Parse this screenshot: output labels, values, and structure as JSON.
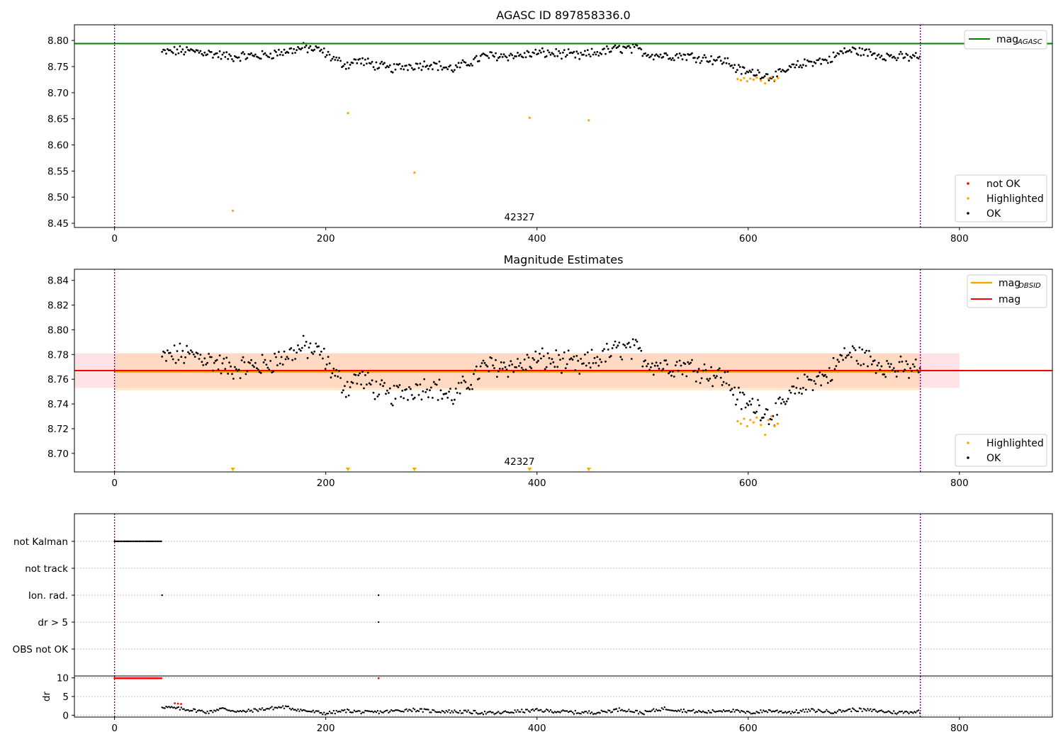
{
  "chart_data": [
    {
      "type": "scatter",
      "title": "AGASC ID 897858336.0",
      "xlim": [
        -38,
        888
      ],
      "ylim": [
        8.442,
        8.83
      ],
      "xticks": [
        0,
        200,
        400,
        600,
        800
      ],
      "yticks": [
        8.45,
        8.5,
        8.55,
        8.6,
        8.65,
        8.7,
        8.75,
        8.8
      ],
      "hlines": [
        {
          "name": "mag",
          "subscript": "AGASC",
          "y": 8.794,
          "color": "#008000"
        }
      ],
      "vlines": [
        {
          "x": 0,
          "color": "#800080",
          "style": "dotted"
        },
        {
          "x": 763,
          "color": "#800080",
          "style": "dotted"
        }
      ],
      "obs_label": {
        "text": "42327",
        "x": 381
      },
      "series_styles": {
        "not_ok": {
          "name": "not OK",
          "color": "#ff0000"
        },
        "highlighted": {
          "name": "Highlighted",
          "color": "#ffa500"
        },
        "ok": {
          "name": "OK",
          "color": "#000000"
        }
      },
      "ok_trend": [
        [
          45,
          8.777
        ],
        [
          60,
          8.78
        ],
        [
          80,
          8.779
        ],
        [
          100,
          8.772
        ],
        [
          110,
          8.768
        ],
        [
          120,
          8.77
        ],
        [
          140,
          8.771
        ],
        [
          160,
          8.778
        ],
        [
          180,
          8.786
        ],
        [
          195,
          8.781
        ],
        [
          210,
          8.762
        ],
        [
          220,
          8.753
        ],
        [
          230,
          8.762
        ],
        [
          245,
          8.754
        ],
        [
          260,
          8.746
        ],
        [
          280,
          8.752
        ],
        [
          300,
          8.755
        ],
        [
          320,
          8.745
        ],
        [
          335,
          8.757
        ],
        [
          350,
          8.77
        ],
        [
          370,
          8.771
        ],
        [
          385,
          8.771
        ],
        [
          400,
          8.776
        ],
        [
          420,
          8.775
        ],
        [
          440,
          8.77
        ],
        [
          460,
          8.778
        ],
        [
          480,
          8.785
        ],
        [
          495,
          8.783
        ],
        [
          505,
          8.774
        ],
        [
          520,
          8.771
        ],
        [
          540,
          8.771
        ],
        [
          560,
          8.766
        ],
        [
          580,
          8.76
        ],
        [
          590,
          8.745
        ],
        [
          600,
          8.739
        ],
        [
          610,
          8.738
        ],
        [
          620,
          8.731
        ],
        [
          630,
          8.735
        ],
        [
          640,
          8.747
        ],
        [
          660,
          8.76
        ],
        [
          675,
          8.762
        ],
        [
          690,
          8.779
        ],
        [
          700,
          8.781
        ],
        [
          720,
          8.774
        ],
        [
          740,
          8.768
        ],
        [
          763,
          8.769
        ]
      ],
      "highlighted_points": [
        [
          590,
          8.726
        ],
        [
          593,
          8.724
        ],
        [
          596,
          8.728
        ],
        [
          599,
          8.722
        ],
        [
          602,
          8.727
        ],
        [
          605,
          8.725
        ],
        [
          608,
          8.729
        ],
        [
          612,
          8.723
        ],
        [
          616,
          8.718
        ],
        [
          619,
          8.727
        ],
        [
          622,
          8.73
        ],
        [
          625,
          8.724
        ],
        [
          628,
          8.728
        ],
        [
          112,
          8.474
        ],
        [
          221,
          8.661
        ],
        [
          284,
          8.547
        ],
        [
          393,
          8.652
        ],
        [
          449,
          8.647
        ]
      ],
      "not_ok_points": []
    },
    {
      "type": "scatter",
      "title": "Magnitude Estimates",
      "xlim": [
        -38,
        888
      ],
      "ylim": [
        8.685,
        8.849
      ],
      "xticks": [
        0,
        200,
        400,
        600,
        800
      ],
      "yticks": [
        8.7,
        8.72,
        8.74,
        8.76,
        8.78,
        8.8,
        8.82,
        8.84
      ],
      "hlines": [
        {
          "name": "mag",
          "subscript": "OBSID",
          "y": 8.766,
          "color": "#ffa500",
          "x0": 0,
          "x1": 763
        },
        {
          "name": "mag",
          "subscript": "",
          "y": 8.767,
          "color": "#ff0000"
        }
      ],
      "bands": [
        {
          "y0": 8.753,
          "y1": 8.781,
          "x0": -38,
          "x1": 800,
          "color": "#ff9fa9",
          "opacity": 0.3
        },
        {
          "y0": 8.751,
          "y1": 8.781,
          "x0": 0,
          "x1": 763,
          "color": "#ffcc8f",
          "opacity": 0.4
        }
      ],
      "vlines": [
        {
          "x": 0,
          "color": "#800080",
          "style": "dotted"
        },
        {
          "x": 763,
          "color": "#800080",
          "style": "dotted"
        }
      ],
      "obs_label": {
        "text": "42327",
        "x": 381
      },
      "offscale_markers": [
        112,
        221,
        284,
        393,
        449
      ],
      "series_styles": {
        "highlighted": {
          "name": "Highlighted",
          "color": "#ffa500"
        },
        "ok": {
          "name": "OK",
          "color": "#000000"
        }
      },
      "ok_trend": [
        [
          45,
          8.777
        ],
        [
          60,
          8.78
        ],
        [
          80,
          8.779
        ],
        [
          100,
          8.772
        ],
        [
          110,
          8.768
        ],
        [
          120,
          8.77
        ],
        [
          140,
          8.771
        ],
        [
          160,
          8.778
        ],
        [
          180,
          8.786
        ],
        [
          195,
          8.781
        ],
        [
          210,
          8.762
        ],
        [
          220,
          8.753
        ],
        [
          230,
          8.762
        ],
        [
          245,
          8.754
        ],
        [
          260,
          8.746
        ],
        [
          280,
          8.752
        ],
        [
          300,
          8.755
        ],
        [
          320,
          8.745
        ],
        [
          335,
          8.757
        ],
        [
          350,
          8.77
        ],
        [
          370,
          8.771
        ],
        [
          385,
          8.771
        ],
        [
          400,
          8.776
        ],
        [
          420,
          8.775
        ],
        [
          440,
          8.77
        ],
        [
          460,
          8.778
        ],
        [
          480,
          8.785
        ],
        [
          495,
          8.783
        ],
        [
          505,
          8.774
        ],
        [
          520,
          8.771
        ],
        [
          540,
          8.771
        ],
        [
          560,
          8.766
        ],
        [
          580,
          8.76
        ],
        [
          590,
          8.745
        ],
        [
          600,
          8.739
        ],
        [
          610,
          8.738
        ],
        [
          620,
          8.731
        ],
        [
          630,
          8.735
        ],
        [
          640,
          8.747
        ],
        [
          660,
          8.76
        ],
        [
          675,
          8.762
        ],
        [
          690,
          8.779
        ],
        [
          700,
          8.781
        ],
        [
          720,
          8.774
        ],
        [
          740,
          8.768
        ],
        [
          763,
          8.769
        ]
      ],
      "highlighted_points": [
        [
          590,
          8.726
        ],
        [
          593,
          8.724
        ],
        [
          596,
          8.728
        ],
        [
          599,
          8.722
        ],
        [
          602,
          8.727
        ],
        [
          605,
          8.725
        ],
        [
          608,
          8.729
        ],
        [
          612,
          8.723
        ],
        [
          616,
          8.715
        ],
        [
          619,
          8.727
        ],
        [
          622,
          8.73
        ],
        [
          625,
          8.722
        ],
        [
          628,
          8.724
        ]
      ]
    },
    {
      "type": "scatter",
      "title": "",
      "xlim": [
        -38,
        888
      ],
      "categories": [
        "not Kalman",
        "not track",
        "Ion. rad.",
        "dr > 5",
        "OBS not OK"
      ],
      "flag_points": [
        {
          "category": "not Kalman",
          "x_ranges": [
            [
              0,
              45
            ]
          ]
        },
        {
          "category": "Ion. rad.",
          "x_points": [
            45,
            250
          ]
        },
        {
          "category": "dr > 5",
          "x_points": [
            250
          ]
        }
      ],
      "vlines": [
        {
          "x": 0,
          "color": "#800080",
          "style": "dotted"
        },
        {
          "x": 763,
          "color": "#800080",
          "style": "dotted"
        }
      ]
    },
    {
      "type": "scatter",
      "title": "",
      "ylabel": "dr",
      "xlim": [
        -38,
        888
      ],
      "ylim": [
        -0.5,
        10.5
      ],
      "xticks": [
        0,
        200,
        400,
        600,
        800
      ],
      "yticks": [
        0,
        5,
        10
      ],
      "red_points": {
        "x_range": [
          0,
          45
        ],
        "y": 9.9,
        "extra": [
          [
            250,
            9.9
          ],
          [
            57,
            3.2
          ],
          [
            60,
            3.1
          ],
          [
            63,
            3.0
          ]
        ]
      },
      "dr_trend": [
        [
          45,
          2.3
        ],
        [
          55,
          1.9
        ],
        [
          70,
          1.5
        ],
        [
          90,
          0.8
        ],
        [
          100,
          1.8
        ],
        [
          120,
          0.9
        ],
        [
          140,
          1.6
        ],
        [
          160,
          2.2
        ],
        [
          180,
          1.2
        ],
        [
          200,
          0.5
        ],
        [
          220,
          1.2
        ],
        [
          240,
          0.7
        ],
        [
          260,
          1.0
        ],
        [
          280,
          1.5
        ],
        [
          300,
          1.1
        ],
        [
          320,
          1.0
        ],
        [
          340,
          0.8
        ],
        [
          360,
          0.5
        ],
        [
          380,
          1.0
        ],
        [
          400,
          1.3
        ],
        [
          420,
          1.0
        ],
        [
          440,
          0.7
        ],
        [
          460,
          0.8
        ],
        [
          480,
          1.6
        ],
        [
          500,
          0.6
        ],
        [
          520,
          1.8
        ],
        [
          540,
          1.2
        ],
        [
          560,
          0.8
        ],
        [
          580,
          1.4
        ],
        [
          600,
          0.6
        ],
        [
          620,
          1.2
        ],
        [
          640,
          0.8
        ],
        [
          660,
          1.3
        ],
        [
          680,
          0.9
        ],
        [
          700,
          1.5
        ],
        [
          720,
          1.2
        ],
        [
          740,
          0.7
        ],
        [
          763,
          1.0
        ]
      ],
      "vlines": [
        {
          "x": 0,
          "color": "#800080",
          "style": "dotted"
        },
        {
          "x": 763,
          "color": "#800080",
          "style": "dotted"
        }
      ]
    }
  ]
}
